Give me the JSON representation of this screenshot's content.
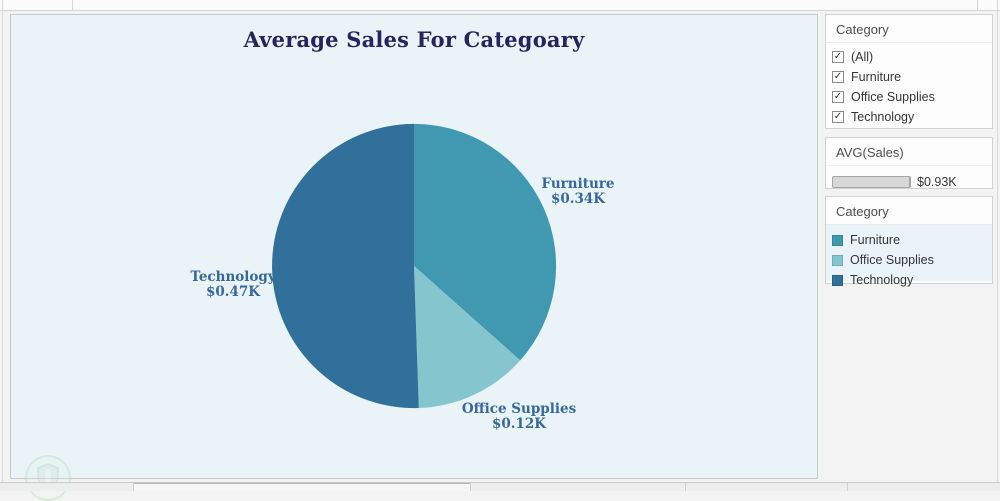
{
  "chart": {
    "title": "Average Sales For Categoary"
  },
  "chart_data": {
    "type": "pie",
    "title": "Average Sales For Categoary",
    "categories": [
      "Furniture",
      "Office Supplies",
      "Technology"
    ],
    "values": [
      0.34,
      0.12,
      0.47
    ],
    "value_labels": [
      "$0.34K",
      "$0.12K",
      "$0.47K"
    ],
    "colors": [
      "#4199b1",
      "#85c5ce",
      "#30709a"
    ],
    "unit": "K (thousand $, AVG of Sales)",
    "start_angle": "top",
    "direction": "clockwise",
    "legend_position": "right-panel"
  },
  "filter_panel": {
    "title": "Category",
    "items": [
      {
        "label": "(All)",
        "checked": true
      },
      {
        "label": "Furniture",
        "checked": true
      },
      {
        "label": "Office Supplies",
        "checked": true
      },
      {
        "label": "Technology",
        "checked": true
      }
    ]
  },
  "slider_panel": {
    "title": "AVG(Sales)",
    "value": "$0.93K"
  },
  "legend_panel": {
    "title": "Category",
    "items": [
      {
        "label": "Furniture",
        "color": "#4199b1"
      },
      {
        "label": "Office Supplies",
        "color": "#85c5ce"
      },
      {
        "label": "Technology",
        "color": "#30709a"
      }
    ]
  }
}
